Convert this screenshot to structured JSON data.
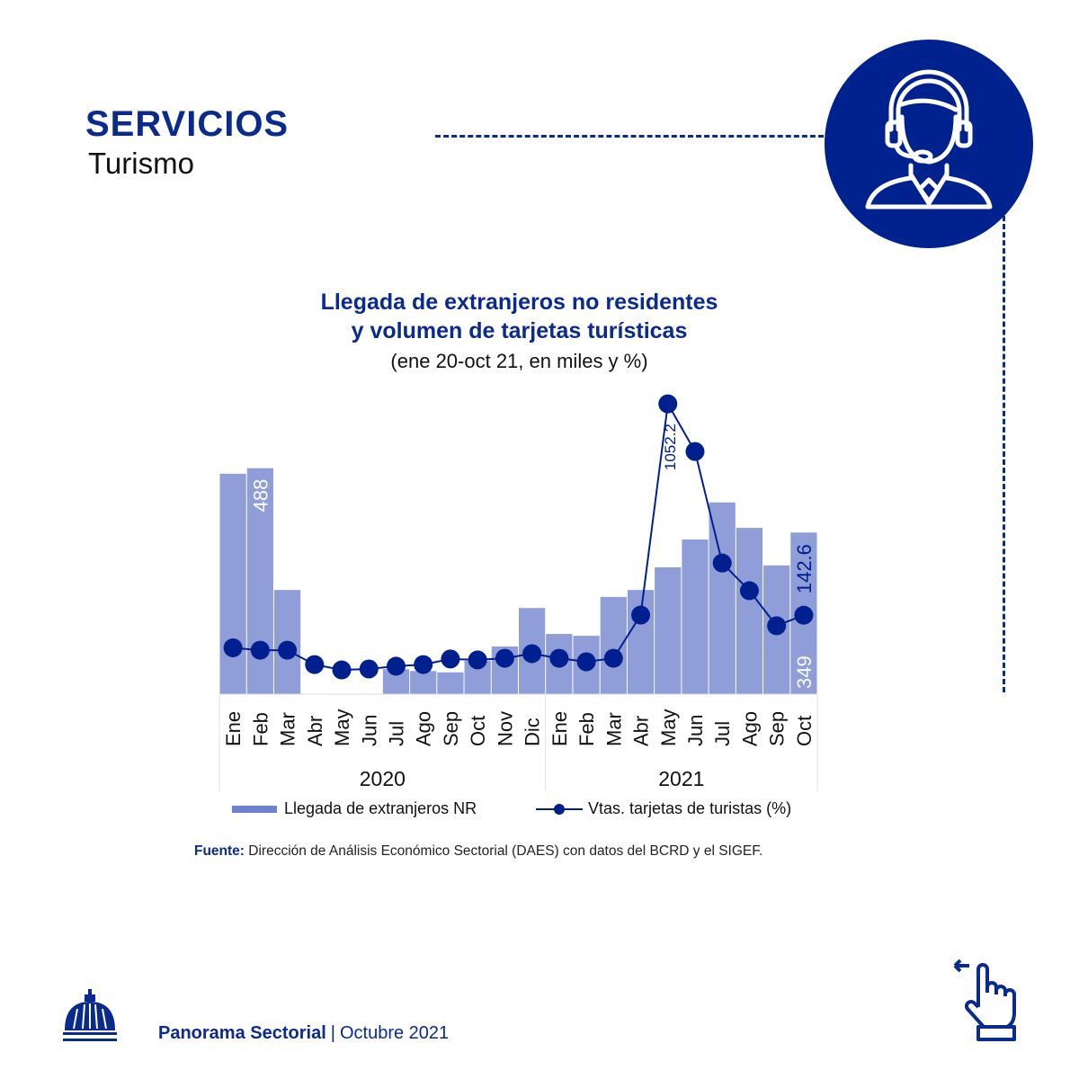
{
  "header": {
    "title": "SERVICIOS",
    "subtitle": "Turismo"
  },
  "icon": "customer-service-headset-icon",
  "chart_data": {
    "type": "bar+line",
    "title": "Llegada de extranjeros no residentes",
    "title_line2": "y volumen de tarjetas turísticas",
    "subtitle": "(ene 20-oct 21, en miles y %)",
    "categories": [
      "Ene",
      "Feb",
      "Mar",
      "Abr",
      "May",
      "Jun",
      "Jul",
      "Ago",
      "Sep",
      "Oct",
      "Nov",
      "Dic",
      "Ene",
      "Feb",
      "Mar",
      "Abr",
      "May",
      "Jun",
      "Jul",
      "Ago",
      "Sep",
      "Oct"
    ],
    "groups": [
      {
        "label": "2020",
        "from": 0,
        "to": 11
      },
      {
        "label": "2021",
        "from": 12,
        "to": 21
      }
    ],
    "series": [
      {
        "name": "Llegada de extranjeros NR",
        "type": "bar",
        "color": "#8f9dd8",
        "values": [
          476,
          488,
          225,
          0,
          0,
          0,
          54,
          50,
          47,
          72,
          103,
          186,
          130,
          126,
          210,
          225,
          274,
          334,
          414,
          359,
          278,
          349
        ]
      },
      {
        "name": "Vtas. tarjetas de turistas (%)",
        "type": "line",
        "color": "#00208f",
        "values": [
          2,
          -8,
          -8,
          -70,
          -93,
          -89,
          -77,
          -70,
          -46,
          -50,
          -43,
          -23,
          -43,
          -58,
          -43,
          143,
          1052.2,
          847,
          367,
          248,
          97,
          142.6
        ]
      }
    ],
    "data_labels": [
      {
        "series": 0,
        "index": 1,
        "text": "488"
      },
      {
        "series": 0,
        "index": 21,
        "text": "349"
      },
      {
        "series": 1,
        "index": 16,
        "text": "1052.2"
      },
      {
        "series": 1,
        "index": 21,
        "text": "142.6"
      }
    ],
    "legend": "bottom",
    "grid": false
  },
  "source": {
    "label": "Fuente:",
    "text": " Dirección de Análisis Económico Sectorial (DAES) con datos del BCRD y el SIGEF."
  },
  "footer": {
    "publication": "Panorama Sectorial",
    "separator": "|",
    "date": "Octubre 2021"
  },
  "colors": {
    "brand": "#0a2a8e",
    "bar": "#8f9dd8",
    "line": "#00208f"
  }
}
